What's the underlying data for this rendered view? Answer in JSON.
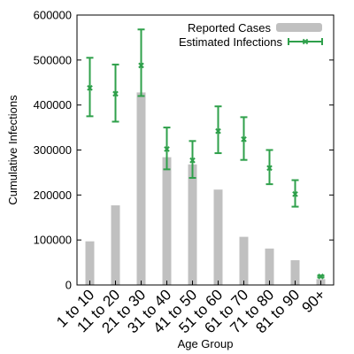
{
  "chart_data": {
    "type": "bar",
    "categories": [
      "1 to 10",
      "11 to 20",
      "21 to 30",
      "31 to 40",
      "41 to 50",
      "51 to 60",
      "61 to 70",
      "71 to 80",
      "81 to 90",
      "90+"
    ],
    "xlabel": "Age Group",
    "ylabel": "Cumulative Infections",
    "ylim": [
      0,
      600000
    ],
    "yticks": [
      0,
      100000,
      200000,
      300000,
      400000,
      500000,
      600000
    ],
    "grid": false,
    "legend_position": "top-right",
    "series": [
      {
        "name": "Reported Cases",
        "kind": "bar",
        "color": "#c0c0c0",
        "values": [
          97000,
          177000,
          428000,
          284000,
          268000,
          212000,
          107000,
          81000,
          55000,
          13000
        ]
      },
      {
        "name": "Estimated Infections",
        "kind": "errorbar",
        "color": "#2fa04b",
        "values": [
          438000,
          425000,
          488000,
          302000,
          277000,
          342000,
          324000,
          260000,
          202000,
          19000
        ],
        "lower": [
          375000,
          363000,
          420000,
          257000,
          238000,
          293000,
          278000,
          224000,
          174000,
          17000
        ],
        "upper": [
          505000,
          490000,
          568000,
          350000,
          320000,
          397000,
          373000,
          300000,
          233000,
          21000
        ]
      }
    ]
  }
}
